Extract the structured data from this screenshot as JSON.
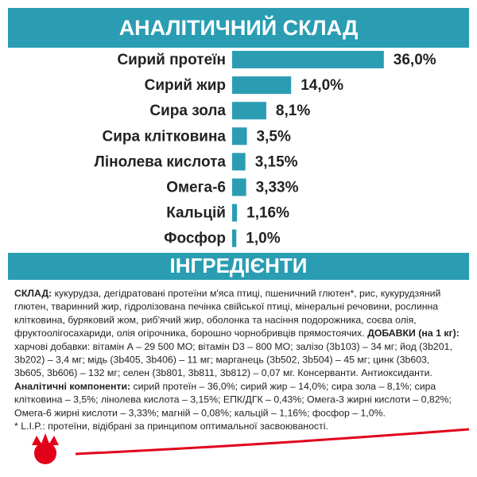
{
  "chart_data": {
    "type": "bar",
    "orientation": "horizontal",
    "title": "АНАЛІТИЧНИЙ СКЛАД",
    "categories": [
      "Сирий протеїн",
      "Сирий жир",
      "Сира зола",
      "Сира клітковина",
      "Лінолева кислота",
      "Омега-6",
      "Кальцій",
      "Фосфор"
    ],
    "values": [
      36.0,
      14.0,
      8.1,
      3.5,
      3.15,
      3.33,
      1.16,
      1.0
    ],
    "value_labels": [
      "36,0%",
      "14,0%",
      "8,1%",
      "3,5%",
      "3,15%",
      "3,33%",
      "1,16%",
      "1,0%"
    ],
    "color": "#2a9db3"
  },
  "ingredients": {
    "title": "ІНГРЕДІЄНТИ",
    "lines": [
      [
        {
          "text": "СКЛАД:",
          "bold": true
        },
        {
          "text": " кукурудза, дегідратовані протеїни м'яса птиці, пшеничний глютен*, рис, кукурудзяний",
          "bold": false
        }
      ],
      [
        {
          "text": "глютен, тваринний жир, гідролізована печінка свійської птиці, мінеральні речовини, рослинна",
          "bold": false
        }
      ],
      [
        {
          "text": "клітковина, буряковий жом, риб'ячий жир, оболонка та насіння подорожника, соєва олія,",
          "bold": false
        }
      ],
      [
        {
          "text": "фруктоолігосахариди, олія огірочника, борошно чорнобривців прямостоячих. ",
          "bold": false
        },
        {
          "text": "ДОБАВКИ (на 1 кг):",
          "bold": true
        }
      ],
      [
        {
          "text": "харчові добавки: вітамін А – 29 500 МО; вітамін D3 – 800 МО; залізо (3b103) – 34 мг; йод (3b201,",
          "bold": false
        }
      ],
      [
        {
          "text": "3b202) – 3,4 мг; мідь (3b405, 3b406) – 11 мг; марганець (3b502, 3b504) – 45 мг; цинк (3b603,",
          "bold": false
        }
      ],
      [
        {
          "text": "3b605, 3b606) – 132 мг; селен (3b801, 3b811, 3b812) – 0,07 мг. Консерванти. Антиоксиданти.",
          "bold": false
        }
      ],
      [
        {
          "text": "Аналітичні компоненти:",
          "bold": true
        },
        {
          "text": " сирий протеїн – 36,0%; сирий жир – 14,0%; сира зола – 8,1%; сира",
          "bold": false
        }
      ],
      [
        {
          "text": "клітковина – 3,5%; лінолева кислота – 3,15%; ЕПК/ДГК – 0,43%; Омега-3 жирні кислоти – 0,82%;",
          "bold": false
        }
      ],
      [
        {
          "text": "Омега-6 жирні кислоти – 3,33%; магній – 0,08%; кальцій – 1,16%; фосфор – 1,0%.",
          "bold": false
        }
      ],
      [
        {
          "text": "* L.I.P.: протеїни, відібрані за принципом оптимальної засвоюваності.",
          "bold": false
        }
      ]
    ]
  }
}
